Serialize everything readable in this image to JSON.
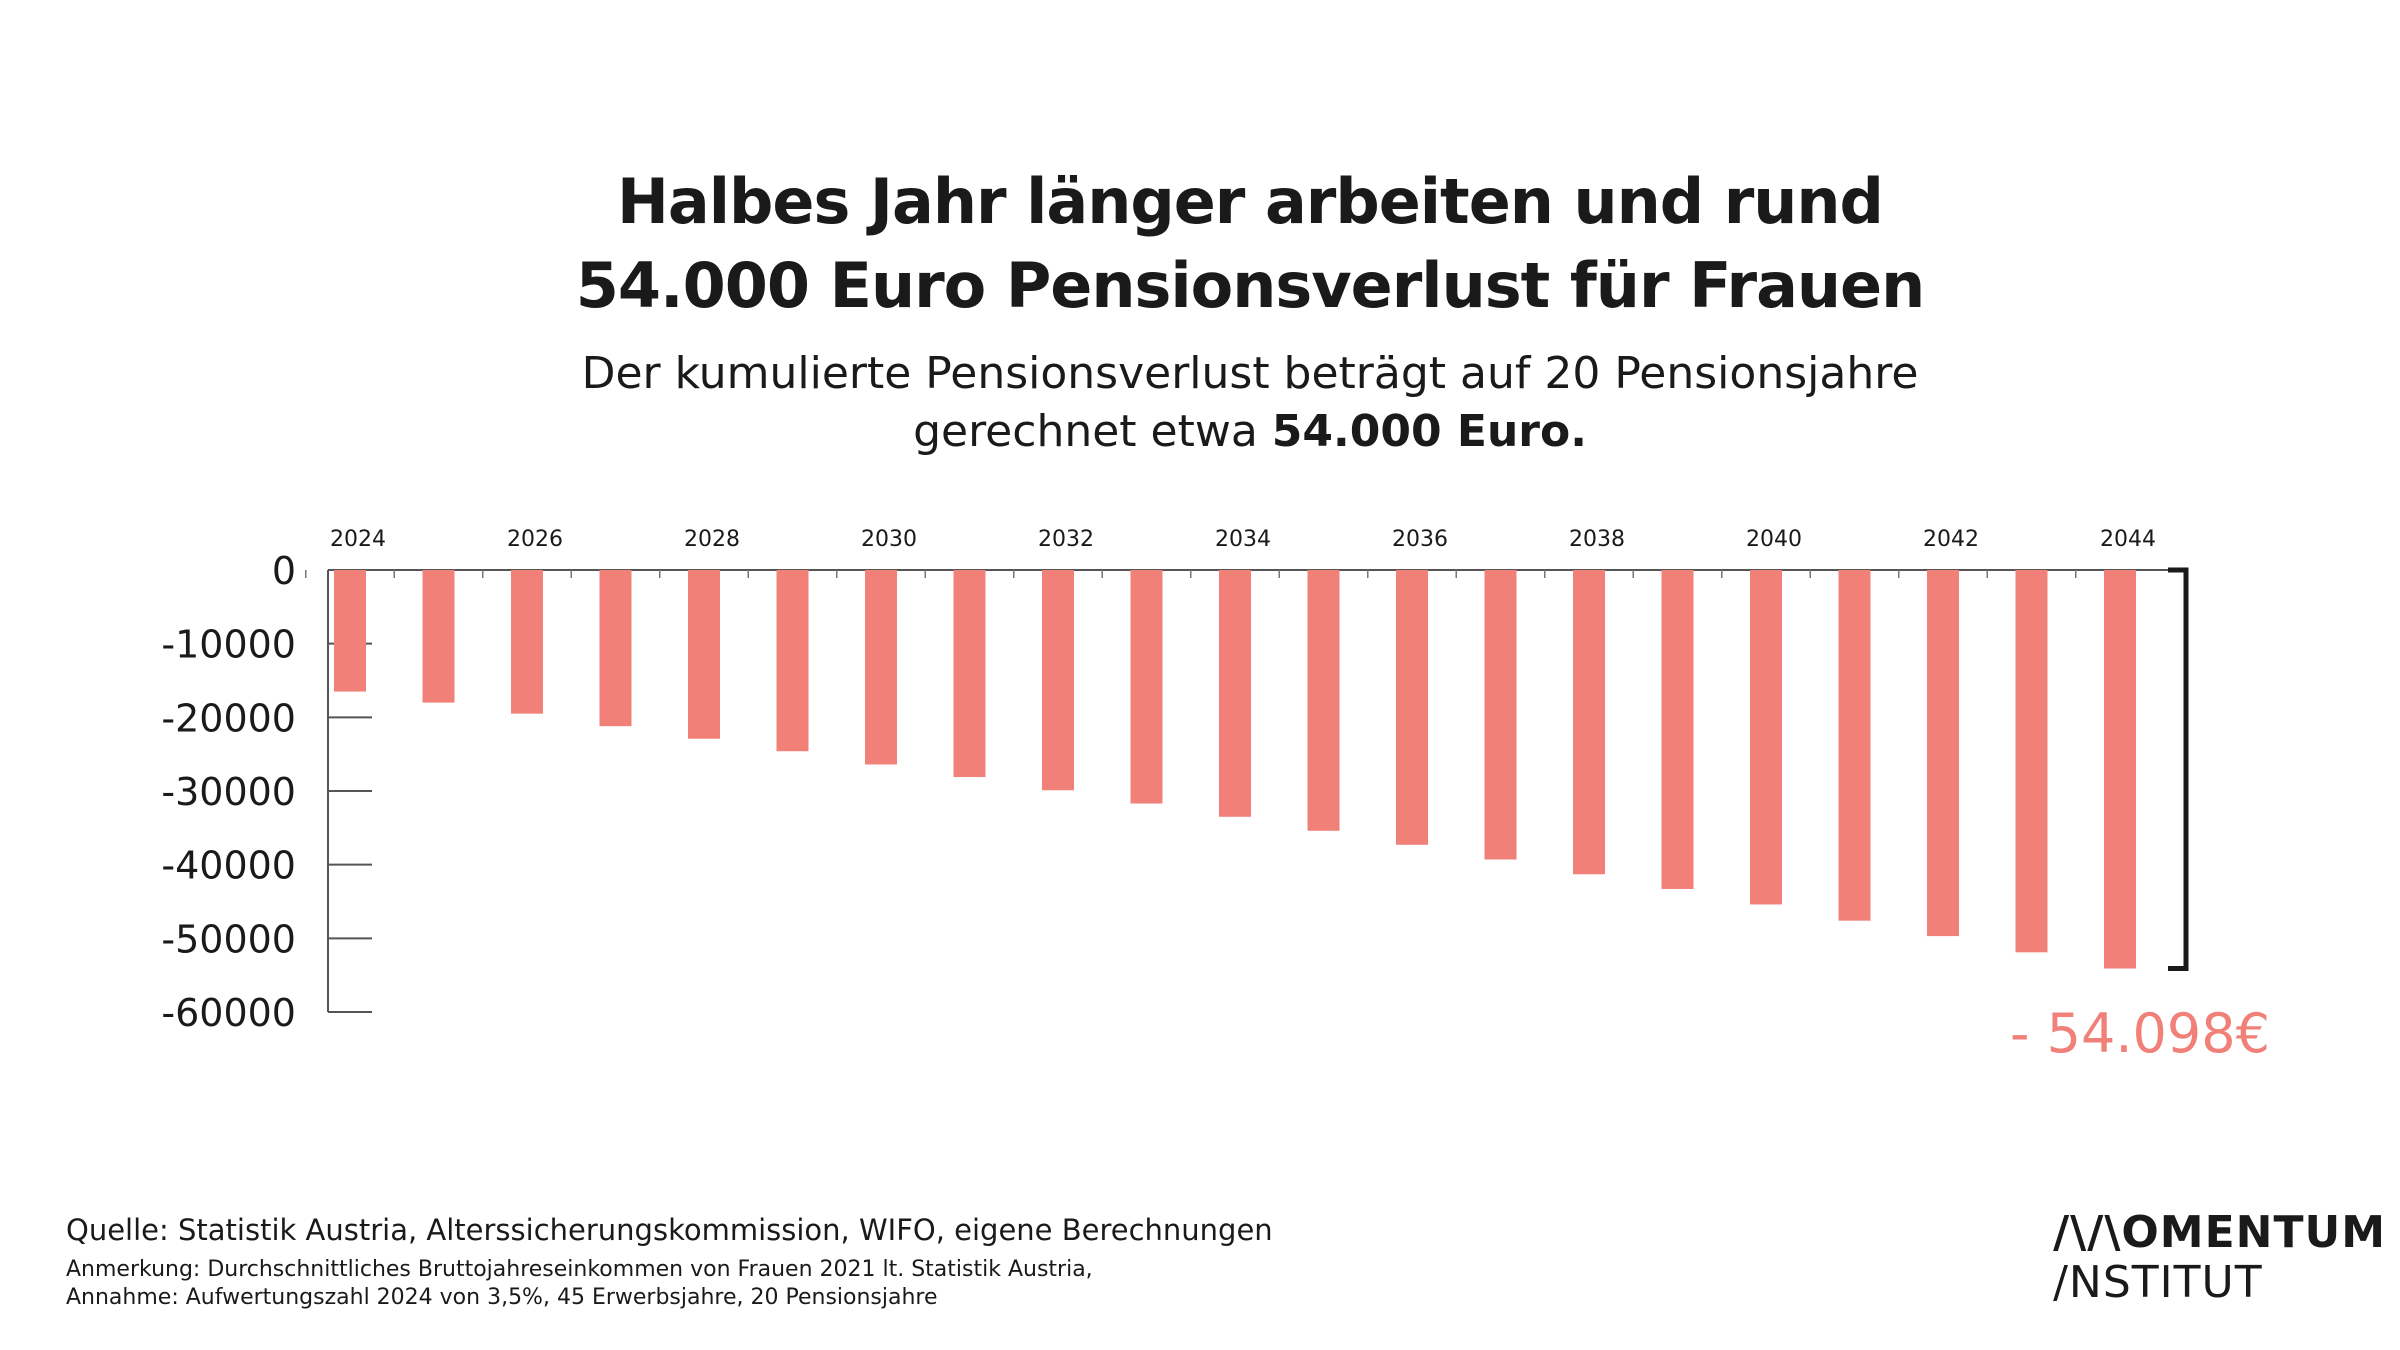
{
  "header": {
    "title_line1": "Halbes Jahr länger arbeiten und rund",
    "title_line2": "54.000 Euro Pensionsverlust für Frauen",
    "subtitle_line1": "Der kumulierte Pensionsverlust beträgt auf 20 Pensionsjahre",
    "subtitle_line2_prefix": "gerechnet etwa ",
    "subtitle_line2_bold": "54.000 Euro."
  },
  "chart_data": {
    "type": "bar",
    "categories": [
      "2024",
      "2025",
      "2026",
      "2027",
      "2028",
      "2029",
      "2030",
      "2031",
      "2032",
      "2033",
      "2034",
      "2035",
      "2036",
      "2037",
      "2038",
      "2039",
      "2040",
      "2041",
      "2042",
      "2043",
      "2044"
    ],
    "x_tick_labels": [
      "2024",
      "2026",
      "2028",
      "2030",
      "2032",
      "2034",
      "2036",
      "2038",
      "2040",
      "2042",
      "2044"
    ],
    "values": [
      -16500,
      -18000,
      -19500,
      -21200,
      -22900,
      -24600,
      -26400,
      -28100,
      -29900,
      -31700,
      -33500,
      -35400,
      -37300,
      -39300,
      -41300,
      -43300,
      -45400,
      -47600,
      -49700,
      -51900,
      -54098
    ],
    "y_ticks": [
      0,
      -10000,
      -20000,
      -30000,
      -40000,
      -50000,
      -60000
    ],
    "y_tick_labels": [
      "0",
      "-10000",
      "-20000",
      "-30000",
      "-40000",
      "-50000",
      "-60000"
    ],
    "ylim": [
      -60000,
      0
    ],
    "x_axis_position": "top",
    "grid": false,
    "bar_color": "#f08078",
    "annotation": "- 54.098€",
    "annotation_color": "#f08078"
  },
  "footer": {
    "source": "Quelle: Statistik Austria, Alterssicherungskommission, WIFO, eigene Berechnungen",
    "note_line1": "Anmerkung: Durchschnittliches Bruttojahreseinkommen von Frauen 2021 lt. Statistik Austria,",
    "note_line2": "Annahme: Aufwertungszahl 2024 von 3,5%, 45 Erwerbsjahre, 20 Pensionsjahre"
  },
  "logo": {
    "line1": "/\\/\\OMENTUM",
    "line2": "/NSTITUT"
  }
}
